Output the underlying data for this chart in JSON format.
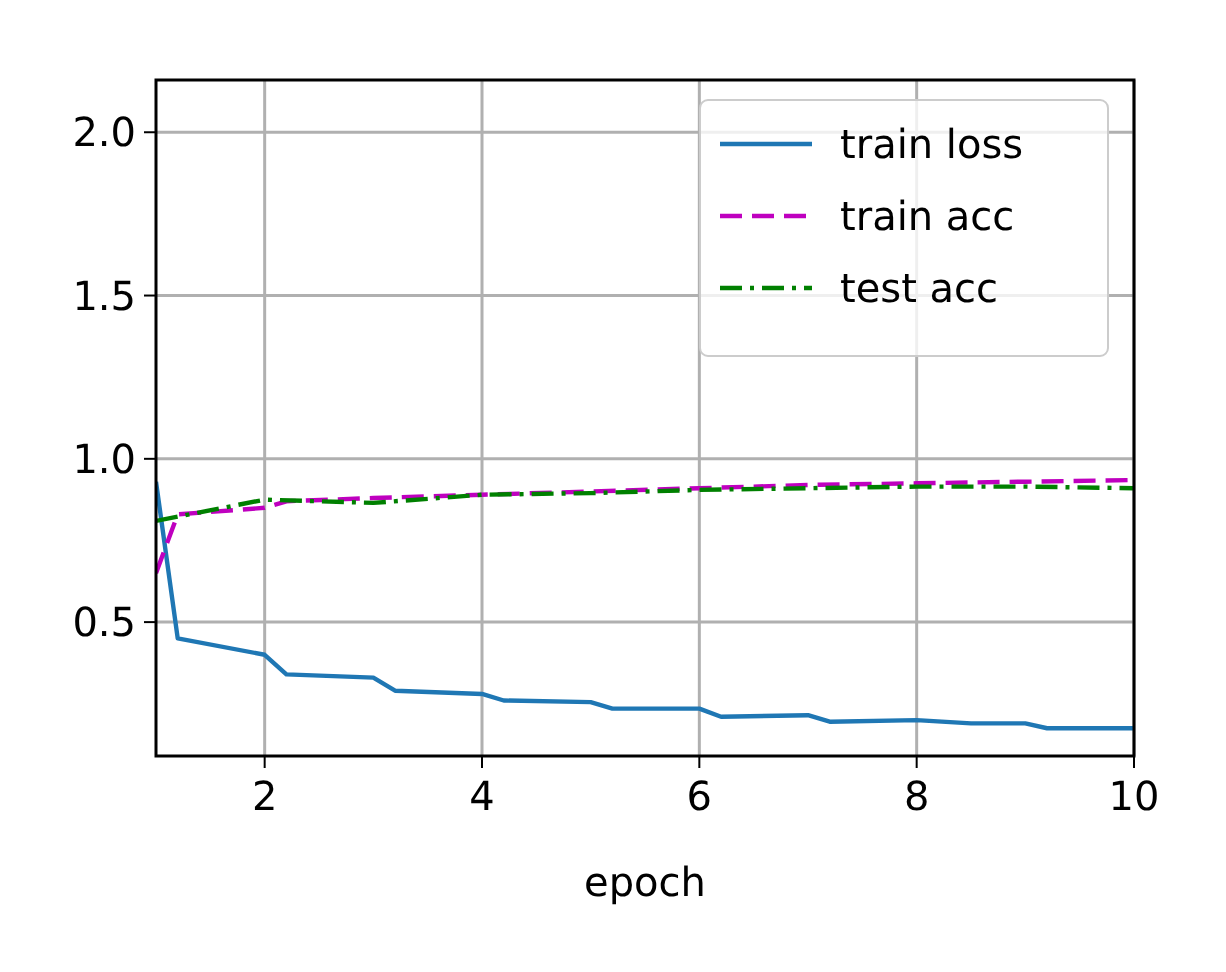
{
  "chart_data": {
    "type": "line",
    "xlabel": "epoch",
    "xlim": [
      1,
      10
    ],
    "ylim": [
      0.09,
      2.16
    ],
    "xticks": [
      2,
      4,
      6,
      8,
      10
    ],
    "yticks": [
      {
        "value": 0.5,
        "label": "0.5"
      },
      {
        "value": 1,
        "label": "1.0"
      },
      {
        "value": 1.5,
        "label": "1.5"
      },
      {
        "value": 2,
        "label": "2.0"
      }
    ],
    "grid": true,
    "legend": "top right",
    "series": [
      {
        "name": "train loss",
        "color": "#1f77b4",
        "line_style": "solid",
        "x": [
          1,
          1.2,
          2,
          2.2,
          3,
          3.2,
          4,
          4.2,
          5,
          5.2,
          6,
          6.2,
          7,
          7.2,
          8,
          8.5,
          9,
          9.2,
          10
        ],
        "values": [
          0.93,
          0.45,
          0.4,
          0.34,
          0.33,
          0.29,
          0.28,
          0.26,
          0.255,
          0.235,
          0.235,
          0.21,
          0.215,
          0.195,
          0.2,
          0.19,
          0.19,
          0.175,
          0.175
        ]
      },
      {
        "name": "train acc",
        "color": "#bf00bf",
        "line_style": "dashed",
        "x": [
          1,
          1.2,
          2,
          2.2,
          3,
          4,
          5,
          6,
          7,
          8,
          9,
          10
        ],
        "values": [
          0.65,
          0.83,
          0.85,
          0.87,
          0.88,
          0.89,
          0.9,
          0.91,
          0.92,
          0.925,
          0.93,
          0.935
        ]
      },
      {
        "name": "test acc",
        "color": "#008000",
        "line_style": "dashdot",
        "x": [
          1,
          2,
          3,
          4,
          5,
          6,
          7,
          8,
          9,
          10
        ],
        "values": [
          0.81,
          0.875,
          0.865,
          0.89,
          0.895,
          0.905,
          0.91,
          0.915,
          0.915,
          0.91
        ]
      }
    ]
  }
}
